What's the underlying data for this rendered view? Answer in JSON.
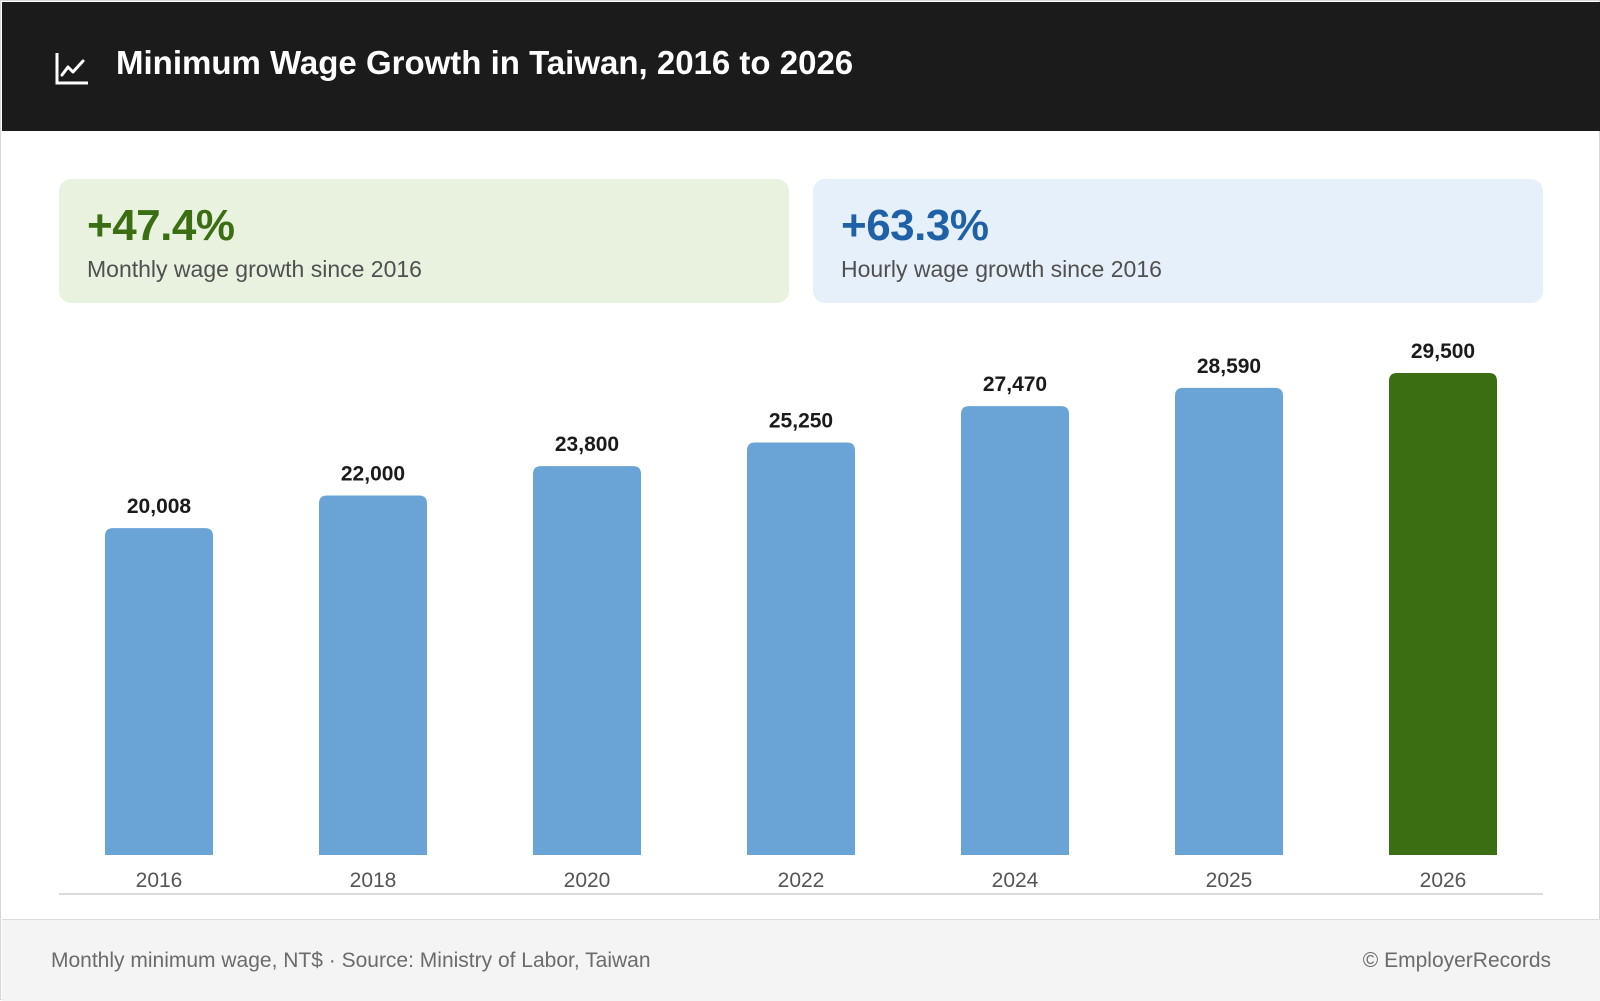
{
  "header": {
    "icon": "line-chart-icon",
    "title": "Minimum Wage Growth in Taiwan, 2016 to 2026"
  },
  "stats": {
    "monthly": {
      "value": "+47.4%",
      "caption": "Monthly wage growth since 2016",
      "color": "#3b6e13"
    },
    "hourly": {
      "value": "+63.3%",
      "caption": "Hourly wage growth since 2016",
      "color": "#1f61a6"
    }
  },
  "chart_data": {
    "type": "bar",
    "categories": [
      "2016",
      "2018",
      "2020",
      "2022",
      "2024",
      "2025",
      "2026"
    ],
    "values": [
      20008,
      22000,
      23800,
      25250,
      27470,
      28590,
      29500
    ],
    "data_labels": [
      "20,008",
      "22,000",
      "23,800",
      "25,250",
      "27,470",
      "28,590",
      "29,500"
    ],
    "bar_color": "#6aa4d6",
    "highlight_color": "#3b6e13",
    "highlight_category": "2026",
    "ylim": [
      0,
      29500
    ],
    "grid": false,
    "legend": "none"
  },
  "footer": {
    "note": "Monthly minimum wage, NT$ · Source: Ministry of Labor, Taiwan",
    "copyright": "© EmployerRecords"
  }
}
